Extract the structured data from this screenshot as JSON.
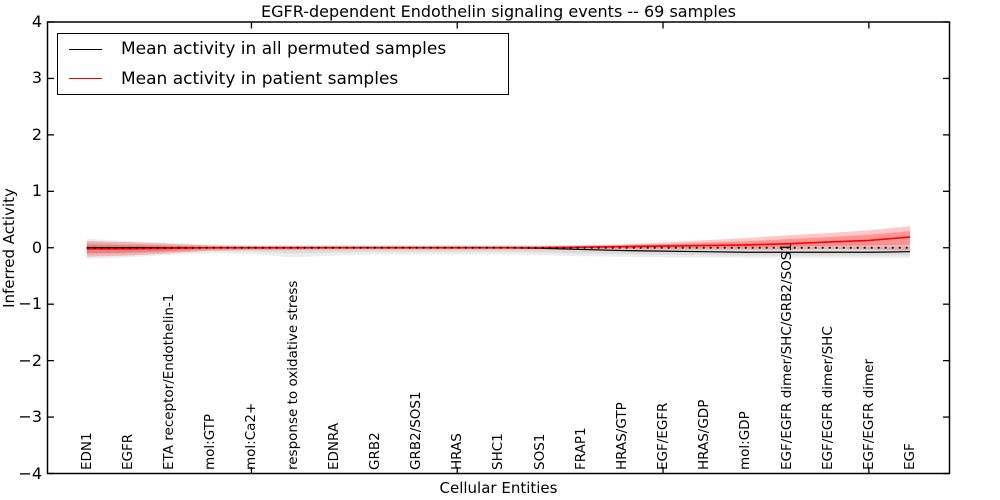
{
  "window": {
    "background": "#ffffff"
  },
  "chart_data": {
    "type": "line",
    "title": "EGFR-dependent Endothelin signaling events -- 69 samples",
    "xlabel": "Cellular Entities",
    "ylabel": "Inferred Activity",
    "ylim": [
      -4,
      4
    ],
    "ytick_values": [
      4,
      3,
      2,
      1,
      0,
      -1,
      -2,
      -3,
      -4
    ],
    "ytick_labels": [
      "4",
      "3",
      "2",
      "1",
      "0",
      "−1",
      "−2",
      "−3",
      "−4"
    ],
    "x_major_tick_indices": [
      4,
      9,
      14,
      19
    ],
    "grid": false,
    "legend_position": "upper left",
    "zero_reference_line": {
      "value": 0,
      "style": "dotted",
      "color": "#000000"
    },
    "categories": [
      "EDN1",
      "EGFR",
      "ETA receptor/Endothelin-1",
      "mol:GTP",
      "mol:Ca2+",
      "response to oxidative stress",
      "EDNRA",
      "GRB2",
      "GRB2/SOS1",
      "HRAS",
      "SHC1",
      "SOS1",
      "FRAP1",
      "HRAS/GTP",
      "EGF/EGFR",
      "HRAS/GDP",
      "mol:GDP",
      "EGF/EGFR dimer/SHC/GRB2/SOS1",
      "EGF/EGFR dimer/SHC",
      "EGF/EGFR dimer",
      "EGF"
    ],
    "series": [
      {
        "name": "Mean activity in all permuted samples",
        "color": "#000000",
        "band_fill": "rgba(0,0,0,0.07)",
        "values": [
          0,
          0,
          0,
          0,
          0,
          0,
          0,
          0,
          0,
          0,
          0,
          -0.01,
          -0.03,
          -0.05,
          -0.06,
          -0.07,
          -0.08,
          -0.08,
          -0.08,
          -0.08,
          -0.07
        ],
        "band_upper": [
          0.16,
          0.12,
          0.09,
          0.06,
          0.05,
          0.05,
          0.05,
          0.05,
          0.05,
          0.05,
          0.05,
          0.05,
          0.05,
          0.05,
          0.05,
          0.05,
          0.06,
          0.06,
          0.06,
          0.07,
          0.07
        ],
        "band_lower": [
          -0.2,
          -0.17,
          -0.13,
          -0.1,
          -0.11,
          -0.17,
          -0.14,
          -0.12,
          -0.12,
          -0.12,
          -0.12,
          -0.13,
          -0.15,
          -0.16,
          -0.17,
          -0.17,
          -0.18,
          -0.18,
          -0.18,
          -0.18,
          -0.18
        ]
      },
      {
        "name": "Mean activity in patient samples",
        "color": "#ff0000",
        "band_fill": "rgba(255,0,0,0.22)",
        "values": [
          -0.02,
          -0.02,
          -0.01,
          0,
          0,
          0,
          0,
          0,
          0,
          0,
          0,
          0,
          0.01,
          0.02,
          0.03,
          0.04,
          0.05,
          0.07,
          0.1,
          0.13,
          0.19
        ],
        "band_upper": [
          0.12,
          0.1,
          0.07,
          0.04,
          0.03,
          0.03,
          0.03,
          0.03,
          0.03,
          0.03,
          0.03,
          0.03,
          0.04,
          0.06,
          0.09,
          0.13,
          0.17,
          0.22,
          0.26,
          0.31,
          0.38
        ],
        "band_lower": [
          -0.16,
          -0.14,
          -0.1,
          -0.05,
          -0.04,
          -0.04,
          -0.03,
          -0.03,
          -0.03,
          -0.03,
          -0.03,
          -0.03,
          -0.03,
          -0.03,
          -0.03,
          -0.03,
          -0.03,
          -0.03,
          -0.02,
          -0.03,
          -0.05
        ]
      }
    ]
  }
}
